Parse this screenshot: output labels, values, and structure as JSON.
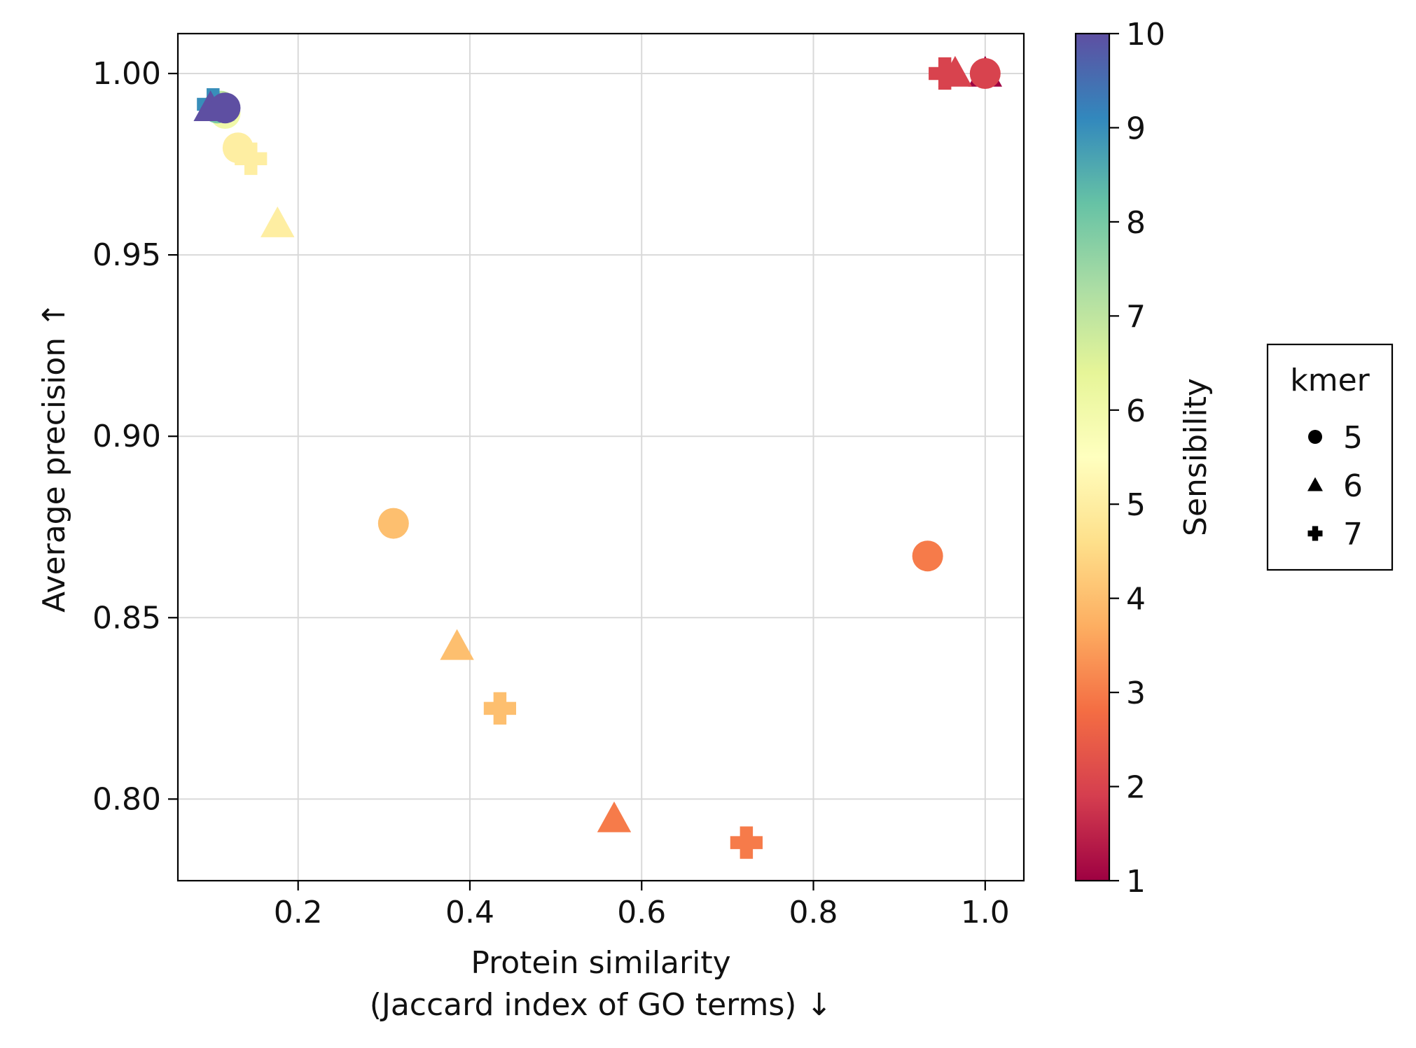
{
  "chart_data": {
    "type": "scatter",
    "xlabel_line1": "Protein similarity",
    "xlabel_line2": "(Jaccard index of GO terms) ↓",
    "ylabel": "Average precision ↑",
    "xlim": [
      0.06,
      1.045
    ],
    "ylim": [
      0.7775,
      1.011
    ],
    "x_ticks": [
      0.2,
      0.4,
      0.6,
      0.8,
      1.0
    ],
    "x_tick_labels": [
      "0.2",
      "0.4",
      "0.6",
      "0.8",
      "1.0"
    ],
    "y_ticks": [
      0.8,
      0.85,
      0.9,
      0.95,
      1.0
    ],
    "y_tick_labels": [
      "0.80",
      "0.85",
      "0.90",
      "0.95",
      "1.00"
    ],
    "grid": true,
    "colorbar": {
      "label": "Sensibility",
      "min": 1,
      "max": 10,
      "ticks": [
        1,
        2,
        3,
        4,
        5,
        6,
        7,
        8,
        9,
        10
      ],
      "tick_labels": [
        "1",
        "2",
        "3",
        "4",
        "5",
        "6",
        "7",
        "8",
        "9",
        "10"
      ],
      "colormap": [
        "#9e0142",
        "#d53e4f",
        "#f46d43",
        "#fdae61",
        "#fee08b",
        "#ffffbf",
        "#e6f598",
        "#abdda4",
        "#66c2a5",
        "#3288bd",
        "#5e4fa2"
      ]
    },
    "legend": {
      "title": "kmer",
      "placement": "right",
      "entries": [
        {
          "label": "5",
          "marker": "circle"
        },
        {
          "label": "6",
          "marker": "triangle"
        },
        {
          "label": "7",
          "marker": "plus"
        }
      ]
    },
    "points": [
      {
        "x": 0.953,
        "y": 1.0,
        "kmer": 7,
        "sensibility": 2
      },
      {
        "x": 1.0,
        "y": 1.0,
        "kmer": 6,
        "sensibility": 1
      },
      {
        "x": 0.965,
        "y": 1.0,
        "kmer": 6,
        "sensibility": 2
      },
      {
        "x": 1.0,
        "y": 1.0,
        "kmer": 5,
        "sensibility": 2
      },
      {
        "x": 0.933,
        "y": 0.867,
        "kmer": 5,
        "sensibility": 3
      },
      {
        "x": 0.568,
        "y": 0.7945,
        "kmer": 6,
        "sensibility": 3
      },
      {
        "x": 0.722,
        "y": 0.788,
        "kmer": 7,
        "sensibility": 3
      },
      {
        "x": 0.311,
        "y": 0.876,
        "kmer": 5,
        "sensibility": 4
      },
      {
        "x": 0.385,
        "y": 0.842,
        "kmer": 6,
        "sensibility": 4
      },
      {
        "x": 0.435,
        "y": 0.825,
        "kmer": 7,
        "sensibility": 4
      },
      {
        "x": 0.176,
        "y": 0.9585,
        "kmer": 6,
        "sensibility": 5
      },
      {
        "x": 0.145,
        "y": 0.9765,
        "kmer": 7,
        "sensibility": 5
      },
      {
        "x": 0.13,
        "y": 0.9795,
        "kmer": 5,
        "sensibility": 5
      },
      {
        "x": 0.115,
        "y": 0.989,
        "kmer": 5,
        "sensibility": 6
      },
      {
        "x": 0.107,
        "y": 0.9905,
        "kmer": 6,
        "sensibility": 7
      },
      {
        "x": 0.11,
        "y": 0.991,
        "kmer": 5,
        "sensibility": 7
      },
      {
        "x": 0.103,
        "y": 0.991,
        "kmer": 6,
        "sensibility": 8
      },
      {
        "x": 0.106,
        "y": 0.9905,
        "kmer": 5,
        "sensibility": 8
      },
      {
        "x": 0.101,
        "y": 0.9915,
        "kmer": 7,
        "sensibility": 9
      },
      {
        "x": 0.098,
        "y": 0.9905,
        "kmer": 6,
        "sensibility": 10
      },
      {
        "x": 0.115,
        "y": 0.9905,
        "kmer": 5,
        "sensibility": 10
      }
    ]
  }
}
